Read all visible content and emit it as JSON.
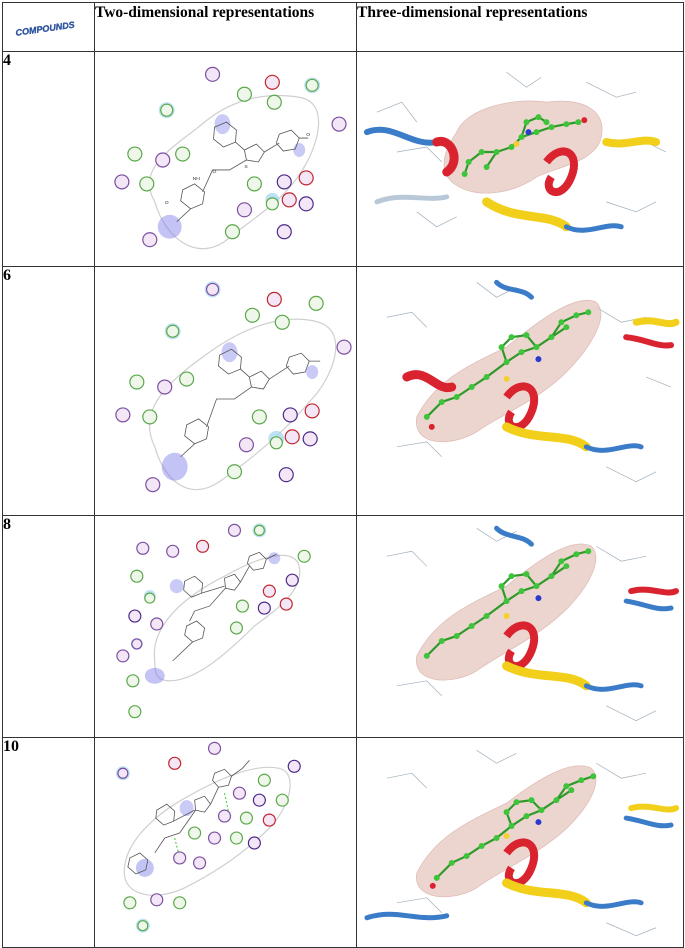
{
  "header": {
    "col1_logo_text": "COMPOUNDS",
    "col2": "Two-dimensional representations",
    "col3": "Three-dimensional representations"
  },
  "rows": [
    {
      "compound": "4"
    },
    {
      "compound": "6"
    },
    {
      "compound": "8"
    },
    {
      "compound": "10"
    }
  ],
  "colors": {
    "border": "#333333",
    "helix_red": "#d9232e",
    "strand_yellow": "#f2cf1a",
    "loop_blue": "#3a7cc8",
    "ligand_green": "#3ec43a",
    "surface_pink": "#e8c8c0",
    "residue_green": "#5aa84a",
    "residue_red": "#c0262d",
    "residue_purple": "#4b2a8a",
    "residue_lightpurple": "#c7a6d6",
    "residue_cyan_halo": "#9fd4ee",
    "hydrophobic_blue": "#6f6fe6"
  }
}
